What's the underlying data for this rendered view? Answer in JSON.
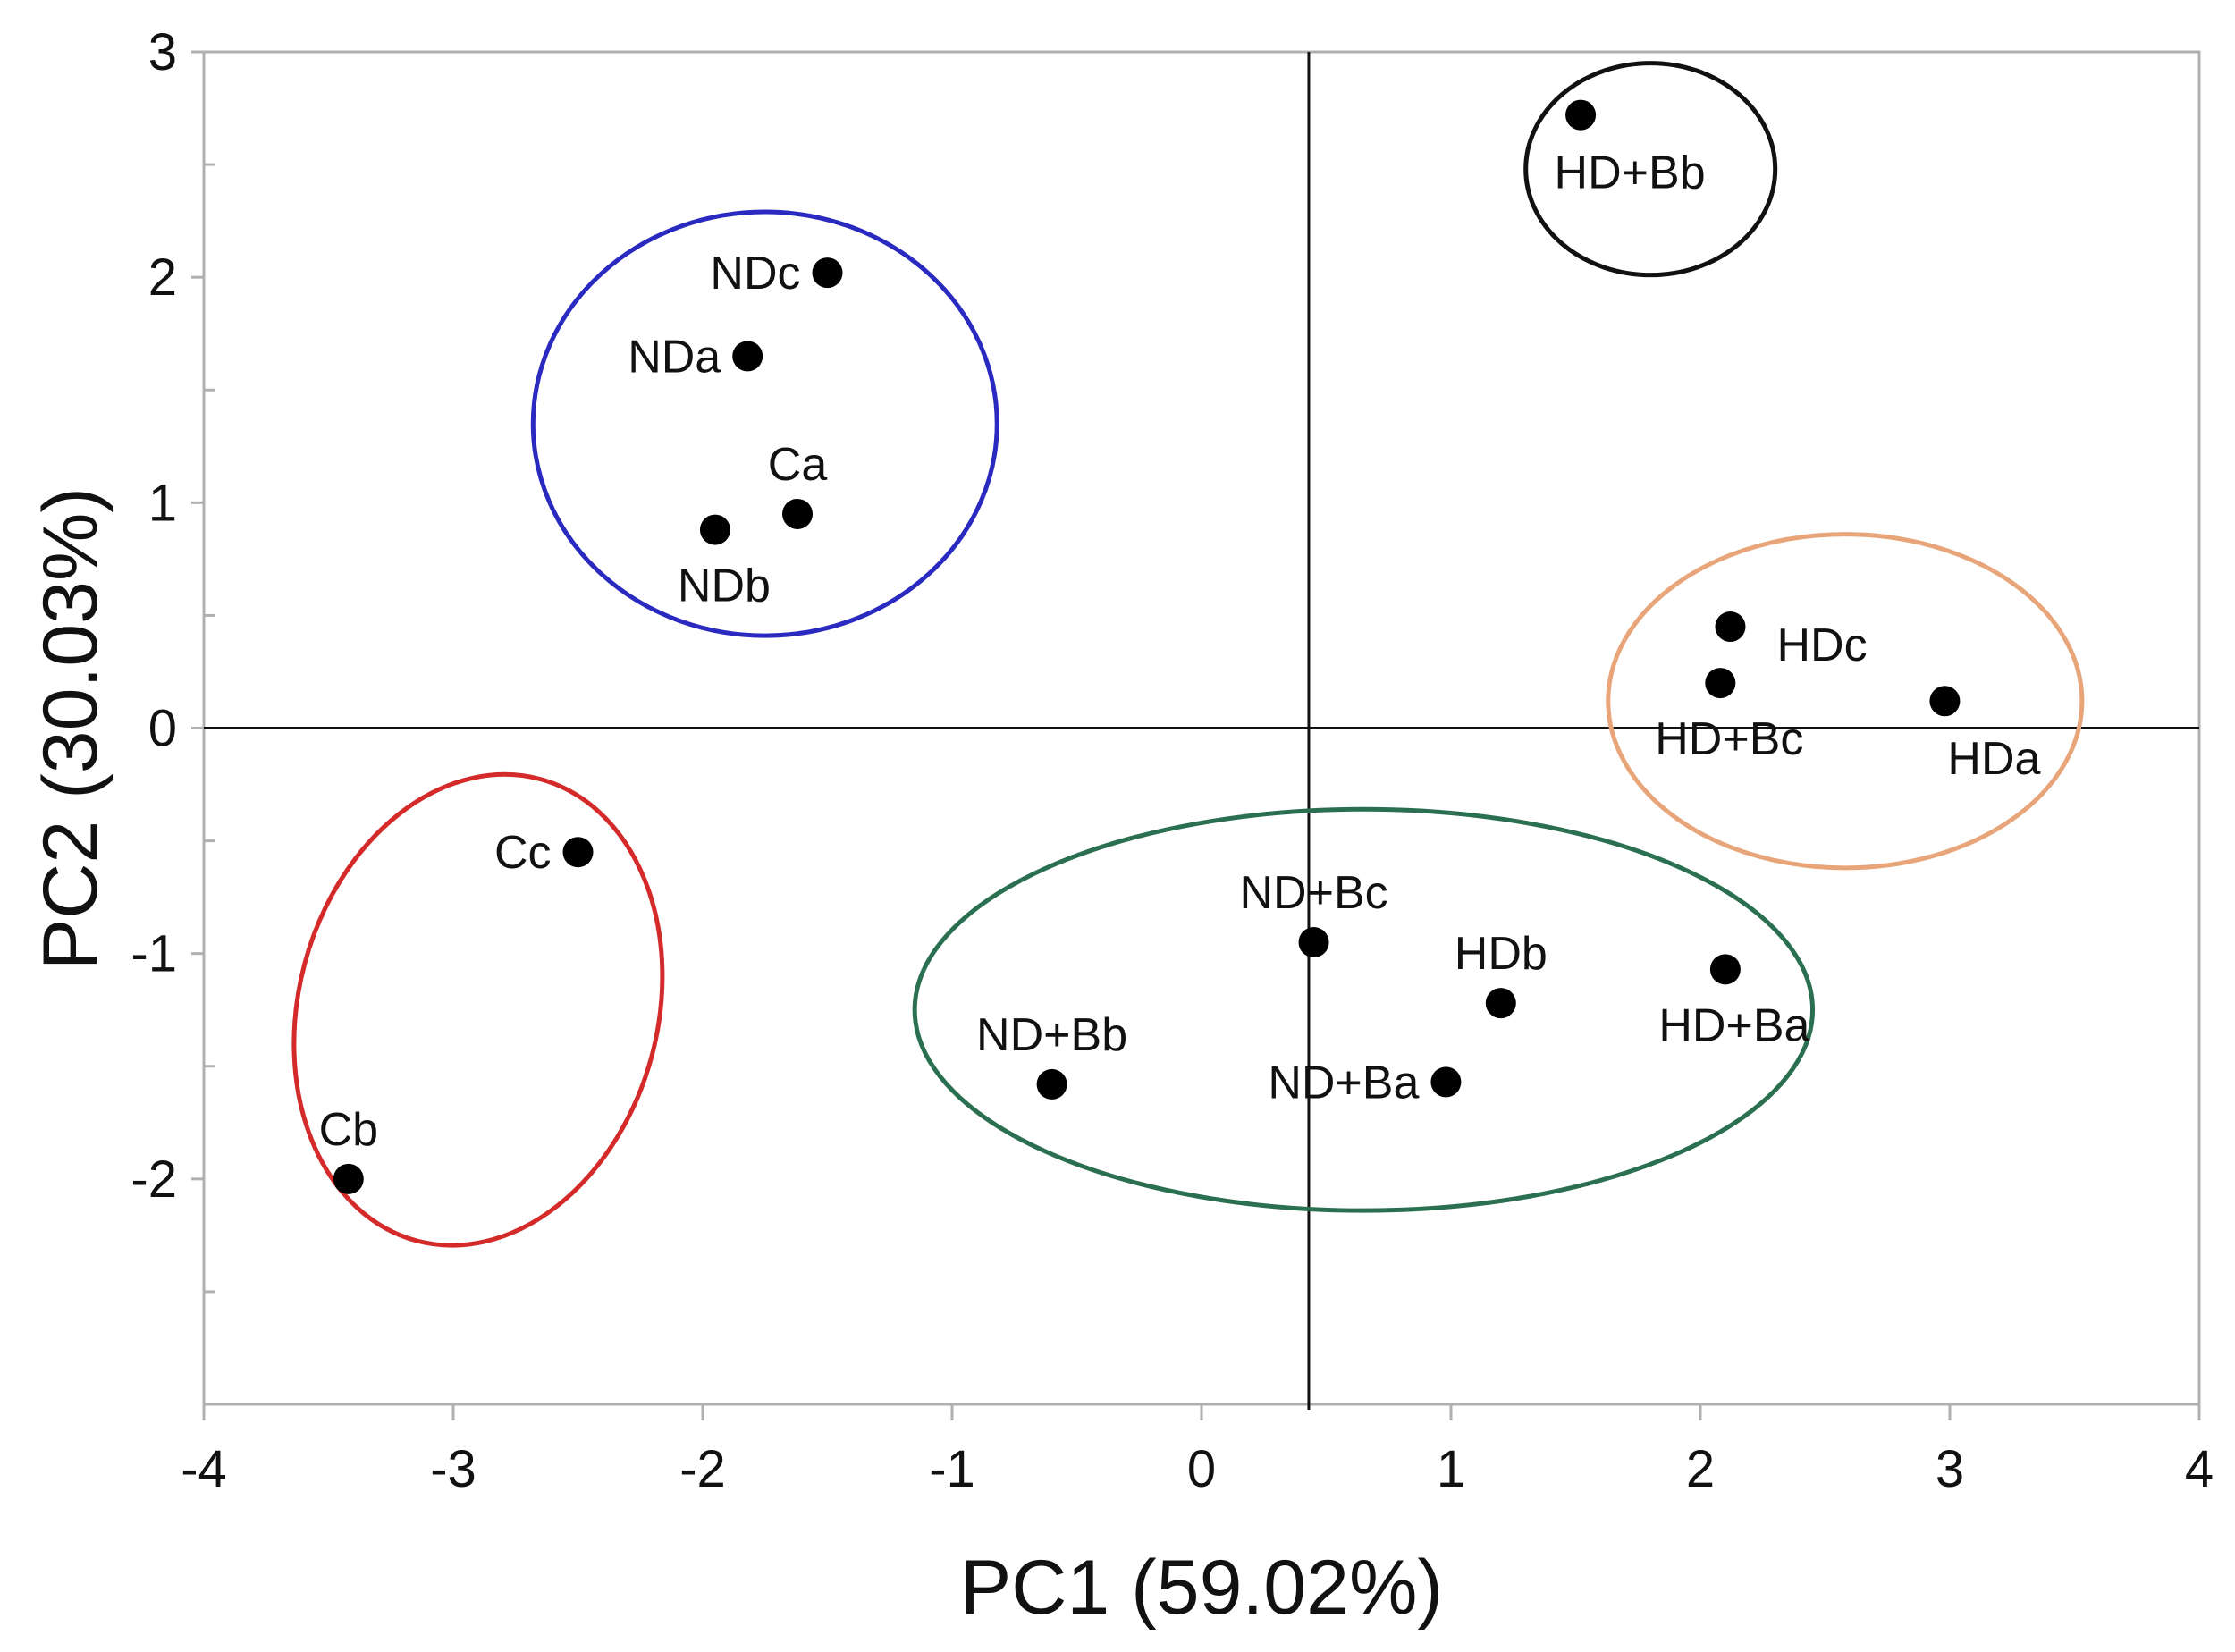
{
  "chart_data": {
    "type": "scatter",
    "xlabel": "PC1 (59.02%)",
    "ylabel": "PC2 (30.03%)",
    "xlim": [
      -4,
      4
    ],
    "ylim": [
      -3,
      3
    ],
    "x_ticks": [
      "-4",
      "-3",
      "-2",
      "-1",
      "0",
      "1",
      "2",
      "3",
      "4"
    ],
    "y_ticks": [
      "-2",
      "-1",
      "0",
      "1",
      "2",
      "3"
    ],
    "reference_lines": {
      "x": 0.43,
      "y": 0
    },
    "grid": false,
    "points": [
      {
        "label": "NDc",
        "x": -1.5,
        "y": 2.02,
        "label_pos": "left"
      },
      {
        "label": "NDa",
        "x": -1.82,
        "y": 1.65,
        "label_pos": "left"
      },
      {
        "label": "Ca",
        "x": -1.62,
        "y": 0.95,
        "label_pos": "above"
      },
      {
        "label": "NDb",
        "x": -1.95,
        "y": 0.88,
        "label_pos": "below"
      },
      {
        "label": "HD+Bb",
        "x": 1.52,
        "y": 2.72,
        "label_pos": "below-right"
      },
      {
        "label": "HDc",
        "x": 2.12,
        "y": 0.45,
        "label_pos": "right"
      },
      {
        "label": "HD+Bc",
        "x": 2.08,
        "y": 0.2,
        "label_pos": "below"
      },
      {
        "label": "HDa",
        "x": 2.98,
        "y": 0.12,
        "label_pos": "below-right"
      },
      {
        "label": "Cc",
        "x": -2.5,
        "y": -0.55,
        "label_pos": "left"
      },
      {
        "label": "Cb",
        "x": -3.42,
        "y": -2.0,
        "label_pos": "above"
      },
      {
        "label": "ND+Bc",
        "x": 0.45,
        "y": -0.95,
        "label_pos": "above"
      },
      {
        "label": "HDb",
        "x": 1.2,
        "y": -1.22,
        "label_pos": "above"
      },
      {
        "label": "HD+Ba",
        "x": 2.1,
        "y": -1.07,
        "label_pos": "below"
      },
      {
        "label": "ND+Bb",
        "x": -0.6,
        "y": -1.58,
        "label_pos": "above"
      },
      {
        "label": "ND+Ba",
        "x": 0.98,
        "y": -1.57,
        "label_pos": "left"
      }
    ],
    "groups": [
      {
        "color": "#2a2ac0",
        "members": [
          "NDc",
          "NDa",
          "Ca",
          "NDb"
        ],
        "cx": -1.75,
        "cy": 1.35,
        "rx": 0.93,
        "ry": 0.94,
        "angle": 0
      },
      {
        "color": "#111111",
        "members": [
          "HD+Bb"
        ],
        "cx": 1.8,
        "cy": 2.48,
        "rx": 0.5,
        "ry": 0.47,
        "angle": 0
      },
      {
        "color": "#e8a57a",
        "members": [
          "HDc",
          "HD+Bc",
          "HDa"
        ],
        "cx": 2.58,
        "cy": 0.12,
        "rx": 0.95,
        "ry": 0.74,
        "angle": 0
      },
      {
        "color": "#d42a2a",
        "members": [
          "Cc",
          "Cb"
        ],
        "cx": -2.9,
        "cy": -1.25,
        "rx": 0.72,
        "ry": 1.06,
        "angle": 15
      },
      {
        "color": "#2a7050",
        "members": [
          "ND+Bc",
          "HDb",
          "HD+Ba",
          "ND+Bb",
          "ND+Ba"
        ],
        "cx": 0.65,
        "cy": -1.25,
        "rx": 1.8,
        "ry": 0.89,
        "angle": 0
      }
    ]
  }
}
